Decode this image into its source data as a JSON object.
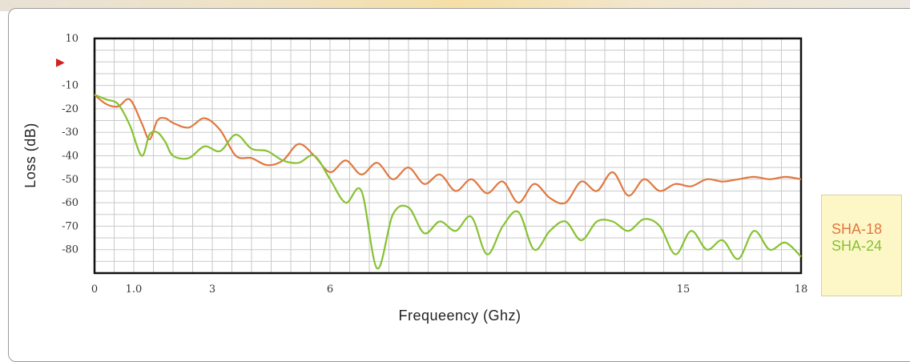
{
  "chart_data": {
    "type": "line",
    "xlabel": "Frequeency (Ghz)",
    "ylabel": "Loss (dB)",
    "xlim": [
      0,
      18
    ],
    "ylim": [
      -90,
      10
    ],
    "x_tick_labels": [
      "0",
      "1.0",
      "3",
      "6",
      "15",
      "18"
    ],
    "y_tick_labels": [
      "10",
      "-10",
      "-20",
      "-30",
      "-40",
      "-50",
      "-60",
      "-70",
      "-80"
    ],
    "y_marker": "▶",
    "grid": true,
    "legend_position": "right",
    "series": [
      {
        "name": "SHA-18",
        "color": "#e07840",
        "x": [
          0,
          0.3,
          0.6,
          0.9,
          1.2,
          1.4,
          1.6,
          1.8,
          2.0,
          2.4,
          2.8,
          3.2,
          3.6,
          4.0,
          4.4,
          4.8,
          5.2,
          5.6,
          6.0,
          6.4,
          6.8,
          7.2,
          7.6,
          8.0,
          8.4,
          8.8,
          9.2,
          9.6,
          10.0,
          10.4,
          10.8,
          11.2,
          11.6,
          12.0,
          12.4,
          12.8,
          13.2,
          13.6,
          14.0,
          14.4,
          14.8,
          15.2,
          15.6,
          16.0,
          16.4,
          16.8,
          17.2,
          17.6,
          18.0
        ],
        "values": [
          -14,
          -18,
          -19,
          -16,
          -26,
          -33,
          -25,
          -24,
          -26,
          -28,
          -24,
          -29,
          -40,
          -41,
          -44,
          -42,
          -35,
          -40,
          -47,
          -42,
          -48,
          -43,
          -50,
          -45,
          -52,
          -48,
          -55,
          -50,
          -56,
          -51,
          -60,
          -52,
          -58,
          -60,
          -51,
          -55,
          -47,
          -57,
          -50,
          -55,
          -52,
          -53,
          -50,
          -51,
          -50,
          -49,
          -50,
          -49,
          -50
        ]
      },
      {
        "name": "SHA-24",
        "color": "#86c232",
        "x": [
          0,
          0.3,
          0.6,
          0.9,
          1.2,
          1.4,
          1.6,
          1.8,
          2.0,
          2.4,
          2.8,
          3.2,
          3.6,
          4.0,
          4.4,
          4.8,
          5.2,
          5.6,
          6.0,
          6.4,
          6.8,
          7.2,
          7.6,
          8.0,
          8.4,
          8.8,
          9.2,
          9.6,
          10.0,
          10.4,
          10.8,
          11.2,
          11.6,
          12.0,
          12.4,
          12.8,
          13.2,
          13.6,
          14.0,
          14.4,
          14.8,
          15.2,
          15.6,
          16.0,
          16.4,
          16.8,
          17.2,
          17.6,
          18.0
        ],
        "values": [
          -14,
          -16,
          -18,
          -27,
          -40,
          -31,
          -30,
          -34,
          -40,
          -41,
          -36,
          -38,
          -31,
          -37,
          -38,
          -42,
          -43,
          -40,
          -50,
          -60,
          -55,
          -88,
          -65,
          -62,
          -73,
          -68,
          -72,
          -66,
          -82,
          -70,
          -64,
          -80,
          -72,
          -68,
          -76,
          -68,
          -68,
          -72,
          -67,
          -70,
          -82,
          -72,
          -80,
          -76,
          -84,
          -72,
          -80,
          -77,
          -83
        ]
      }
    ]
  }
}
